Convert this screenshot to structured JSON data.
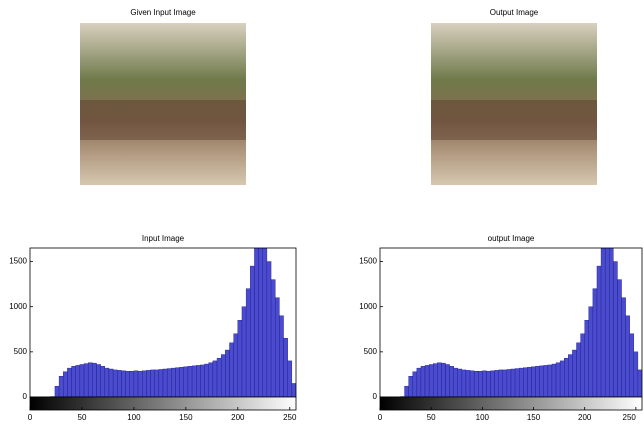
{
  "images": [
    {
      "title": "Given Input Image"
    },
    {
      "title": "Output Image"
    }
  ],
  "chart_data": [
    {
      "type": "histogram",
      "title": "Input Image",
      "color": "#4b4bd0",
      "bins": [
        0,
        4,
        8,
        12,
        16,
        20,
        24,
        28,
        32,
        36,
        40,
        44,
        48,
        52,
        56,
        60,
        64,
        68,
        72,
        76,
        80,
        84,
        88,
        92,
        96,
        100,
        104,
        108,
        112,
        116,
        120,
        124,
        128,
        132,
        136,
        140,
        144,
        148,
        152,
        156,
        160,
        164,
        168,
        172,
        176,
        180,
        184,
        188,
        192,
        196,
        200,
        204,
        208,
        212,
        216,
        220,
        224,
        228,
        232,
        236,
        240,
        244,
        248,
        252,
        256
      ],
      "values": [
        0,
        0,
        0,
        0,
        0,
        5,
        120,
        230,
        280,
        320,
        340,
        350,
        360,
        370,
        380,
        375,
        360,
        340,
        320,
        310,
        300,
        295,
        290,
        285,
        285,
        290,
        285,
        290,
        295,
        300,
        300,
        305,
        310,
        315,
        320,
        325,
        330,
        335,
        340,
        345,
        350,
        355,
        365,
        380,
        400,
        430,
        470,
        520,
        600,
        700,
        850,
        1000,
        1200,
        1450,
        1650,
        1700,
        1650,
        1500,
        1300,
        1100,
        900,
        650,
        400,
        150
      ],
      "xlim": [
        0,
        256
      ],
      "xticks": [
        0,
        50,
        100,
        150,
        200,
        250
      ],
      "ylim": [
        0,
        1650
      ],
      "yticks": [
        0,
        500,
        1000,
        1500
      ]
    },
    {
      "type": "histogram",
      "title": "output Image",
      "color": "#4b4bd0",
      "bins": [
        0,
        4,
        8,
        12,
        16,
        20,
        24,
        28,
        32,
        36,
        40,
        44,
        48,
        52,
        56,
        60,
        64,
        68,
        72,
        76,
        80,
        84,
        88,
        92,
        96,
        100,
        104,
        108,
        112,
        116,
        120,
        124,
        128,
        132,
        136,
        140,
        144,
        148,
        152,
        156,
        160,
        164,
        168,
        172,
        176,
        180,
        184,
        188,
        192,
        196,
        200,
        204,
        208,
        212,
        216,
        220,
        224,
        228,
        232,
        236,
        240,
        244,
        248,
        252,
        256
      ],
      "values": [
        0,
        0,
        0,
        0,
        0,
        5,
        120,
        230,
        280,
        320,
        340,
        350,
        360,
        370,
        380,
        375,
        360,
        340,
        320,
        310,
        300,
        295,
        290,
        285,
        285,
        290,
        285,
        290,
        295,
        300,
        300,
        305,
        310,
        315,
        320,
        325,
        330,
        335,
        340,
        345,
        350,
        355,
        365,
        380,
        400,
        430,
        470,
        520,
        600,
        700,
        850,
        1000,
        1200,
        1450,
        1650,
        1700,
        1650,
        1500,
        1300,
        1100,
        900,
        700,
        500,
        300
      ],
      "xlim": [
        0,
        256
      ],
      "xticks": [
        0,
        50,
        100,
        150,
        200,
        250
      ],
      "ylim": [
        0,
        1650
      ],
      "yticks": [
        0,
        500,
        1000,
        1500
      ]
    }
  ]
}
